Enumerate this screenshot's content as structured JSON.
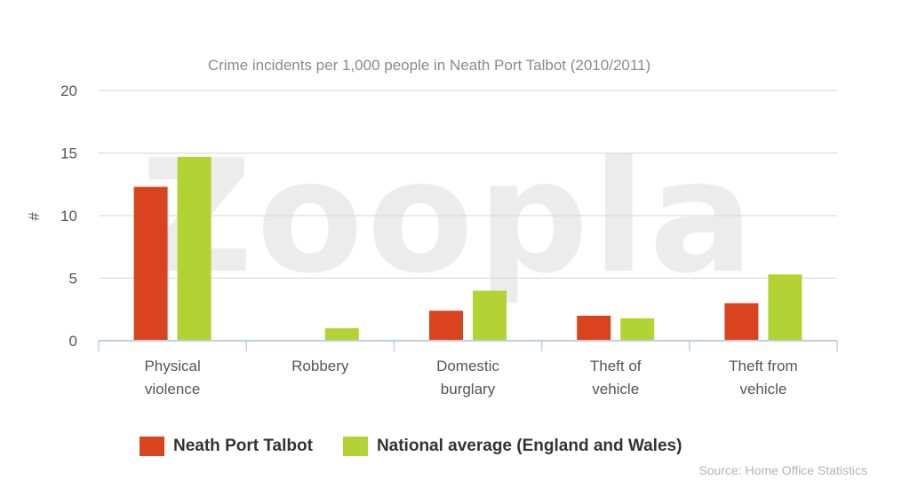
{
  "chart_data": {
    "type": "bar",
    "title": "Crime incidents per 1,000 people in Neath Port Talbot (2010/2011)",
    "ylabel": "#",
    "xlabel": "",
    "ylim": [
      0,
      20
    ],
    "yticks": [
      0,
      5,
      10,
      15,
      20
    ],
    "grid": true,
    "legend_position": "bottom",
    "categories": [
      [
        "Physical",
        "violence"
      ],
      [
        "Robbery"
      ],
      [
        "Domestic",
        "burglary"
      ],
      [
        "Theft of",
        "vehicle"
      ],
      [
        "Theft from",
        "vehicle"
      ]
    ],
    "series": [
      {
        "name": "Neath Port Talbot",
        "color": "#d9441f",
        "values": [
          12.3,
          0,
          2.4,
          2.0,
          3.0
        ]
      },
      {
        "name": "National average (England and Wales)",
        "color": "#b3d335",
        "values": [
          14.7,
          1.0,
          4.0,
          1.8,
          5.3
        ]
      }
    ],
    "source": "Source: Home Office Statistics"
  },
  "watermark": "Zoopla",
  "colors": {
    "grid": "#d6d6d6",
    "axis": "#c0cfe0",
    "watermark": "#ececec"
  }
}
